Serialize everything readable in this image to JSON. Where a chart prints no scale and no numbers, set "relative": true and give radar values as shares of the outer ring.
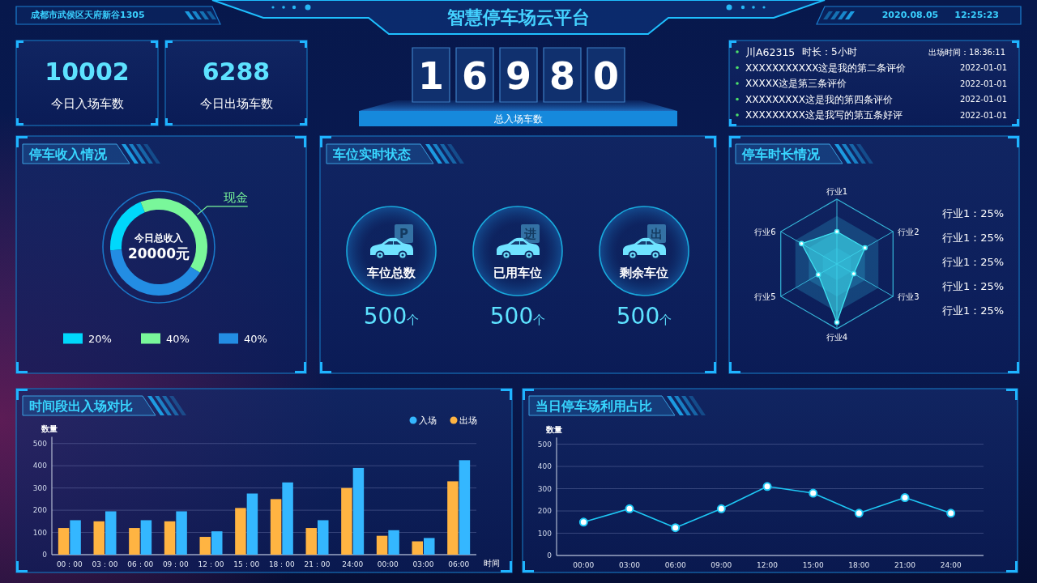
{
  "chart_data": [
    {
      "type": "other",
      "title": "智慧停车场云平台",
      "annotations": [
        "成都市武侯区天府新谷1305",
        "2020.08.05",
        "12:25:23"
      ]
    },
    {
      "type": "other",
      "annotations": [
        "10002",
        "今日入场车数",
        "6288",
        "今日出场车数"
      ]
    },
    {
      "type": "other",
      "categories": [
        "总入场车数"
      ],
      "values": [
        16980
      ],
      "data_labels": true
    },
    {
      "type": "other",
      "annotations": [
        "川A62315",
        "时长：5小时",
        "出场时间：18:36:11",
        "XXXXXXXXXXX这是我的第二条评价",
        "2022-01-01",
        "XXXXX这是第三条评价",
        "2022-01-01",
        "XXXXXXXXX这是我的第四条评价",
        "2022-01-01",
        "XXXXXXXXX这是我写的第五条好评",
        "2022-01-01"
      ]
    },
    {
      "type": "donut",
      "title": "停车收入情况",
      "categories": [
        null,
        "现金",
        null
      ],
      "values": [
        20,
        40,
        40
      ],
      "colors": [
        "#00d8fb",
        "#79f79a",
        "#238de3"
      ],
      "annotations": [
        "今日总收入",
        "20000元",
        "20%",
        "40%",
        "40%"
      ]
    },
    {
      "type": "other",
      "title": "车位实时状态",
      "categories": [
        "车位总数",
        "已用车位",
        "剩余车位"
      ],
      "values": [
        500,
        500,
        500
      ],
      "value_labels": [
        "500个",
        "500个",
        "500个"
      ],
      "annotations": [
        "P",
        "进",
        "出"
      ]
    },
    {
      "type": "radar",
      "title": "停车时长情况",
      "categories": [
        "行业1",
        "行业2",
        "行业3",
        "行业4",
        "行业5",
        "行业6"
      ],
      "relative": true,
      "series": [
        {
          "color": "#3ee3f2",
          "values": [
            0.5,
            0.5,
            0.3,
            0.9,
            0.33,
            0.63
          ]
        }
      ],
      "annotations": [
        "行业1：25%",
        "行业1：25%",
        "行业1：25%",
        "行业1：25%",
        "行业1：25%"
      ]
    },
    {
      "type": "bar",
      "title": "时间段出入场对比",
      "xlabel": "时间",
      "ylabel": "数量",
      "categories": [
        "00：00",
        "03：00",
        "06：00",
        "09：00",
        "12：00",
        "15：00",
        "18：00",
        "21：00",
        "24:00",
        "00:00",
        "03:00",
        "06:00"
      ],
      "series": [
        {
          "name": "出场",
          "color": "#ffb442",
          "values": [
            120,
            150,
            120,
            150,
            80,
            210,
            250,
            120,
            300,
            85,
            60,
            330
          ]
        },
        {
          "name": "入场",
          "color": "#34b7ff",
          "values": [
            155,
            195,
            155,
            195,
            105,
            275,
            325,
            155,
            390,
            110,
            75,
            425
          ]
        }
      ],
      "ylim": [
        0,
        530
      ],
      "yticks": [
        0,
        100,
        200,
        300,
        400,
        500
      ],
      "grid": "y",
      "legend": "top right"
    },
    {
      "type": "line",
      "title": "当日停车场利用占比",
      "ylabel": "数量",
      "categories": [
        "00:00",
        "03:00",
        "06:00",
        "09:00",
        "12:00",
        "15:00",
        "18:00",
        "21:00",
        "24:00"
      ],
      "series": [
        {
          "color": "#1ec8f5",
          "values": [
            150,
            210,
            125,
            210,
            310,
            280,
            190,
            260,
            190
          ]
        }
      ],
      "ylim": [
        0,
        530
      ],
      "yticks": [
        0,
        100,
        200,
        300,
        400,
        500
      ],
      "grid": "y",
      "marker": "circle"
    }
  ]
}
